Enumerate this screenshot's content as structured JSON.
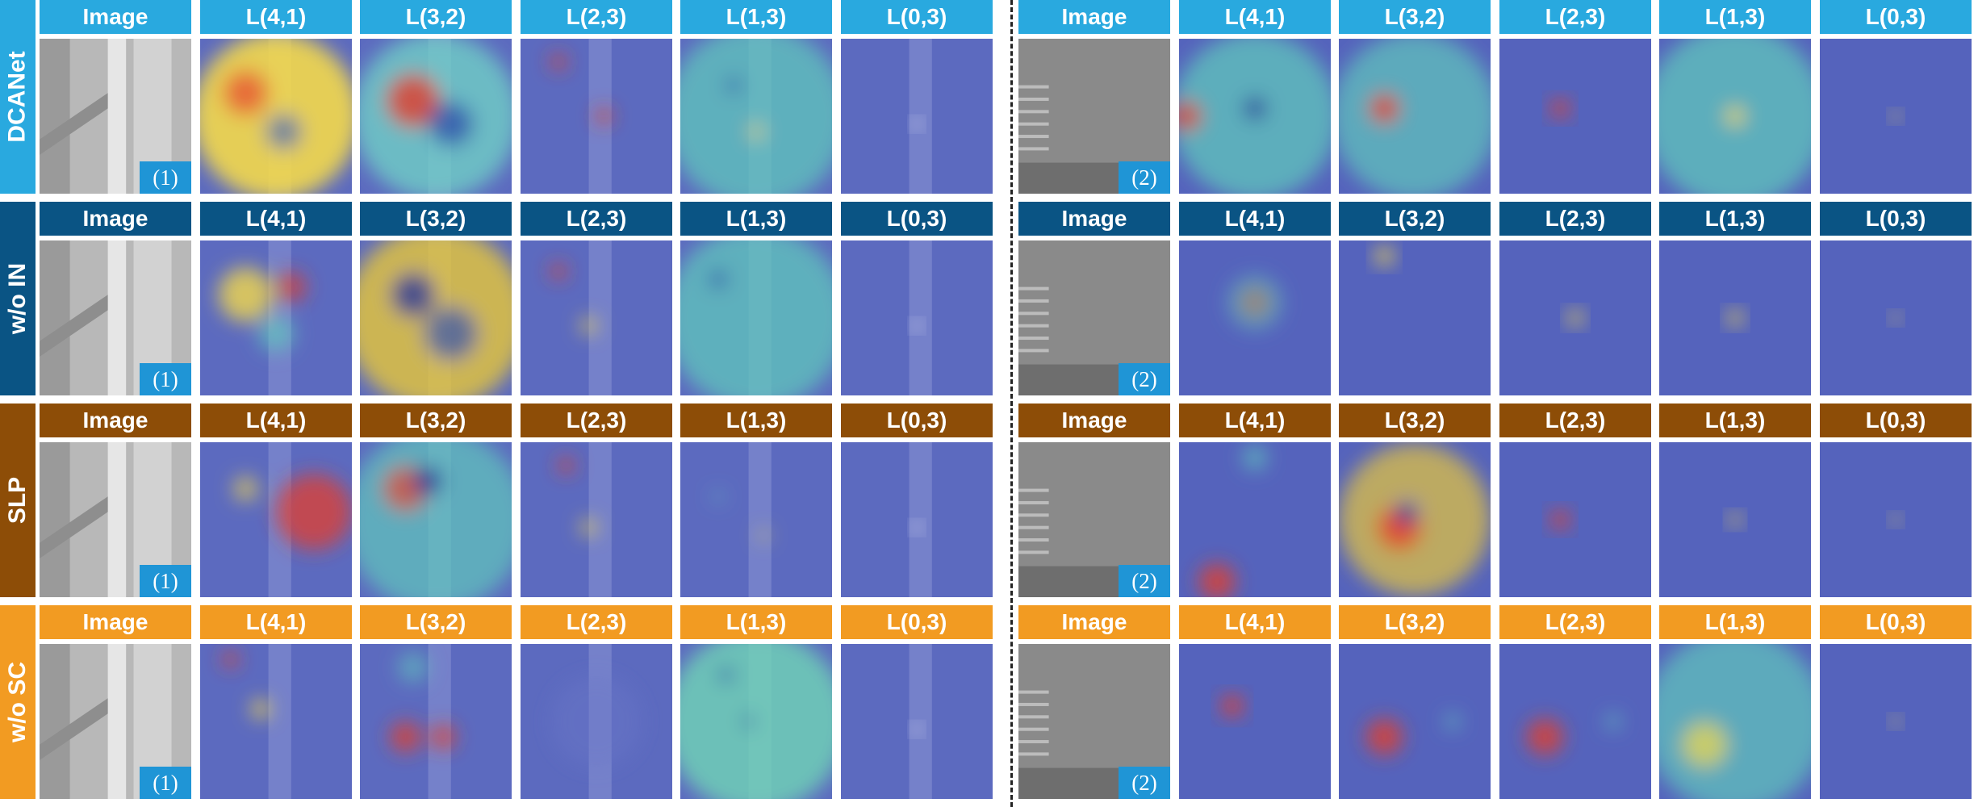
{
  "rows": [
    {
      "label": "DCANet",
      "color": "#29a9df"
    },
    {
      "label": "w/o IN",
      "color": "#0a5484"
    },
    {
      "label": "SLP",
      "color": "#8d4d07"
    },
    {
      "label": "w/o SC",
      "color": "#f29b22"
    }
  ],
  "columns": [
    "Image",
    "L(4,1)",
    "L(3,2)",
    "L(2,3)",
    "L(1,3)",
    "L(0,3)"
  ],
  "samples": [
    {
      "tag": "(1)"
    },
    {
      "tag": "(2)"
    }
  ],
  "tag_color": "#1f95d6"
}
